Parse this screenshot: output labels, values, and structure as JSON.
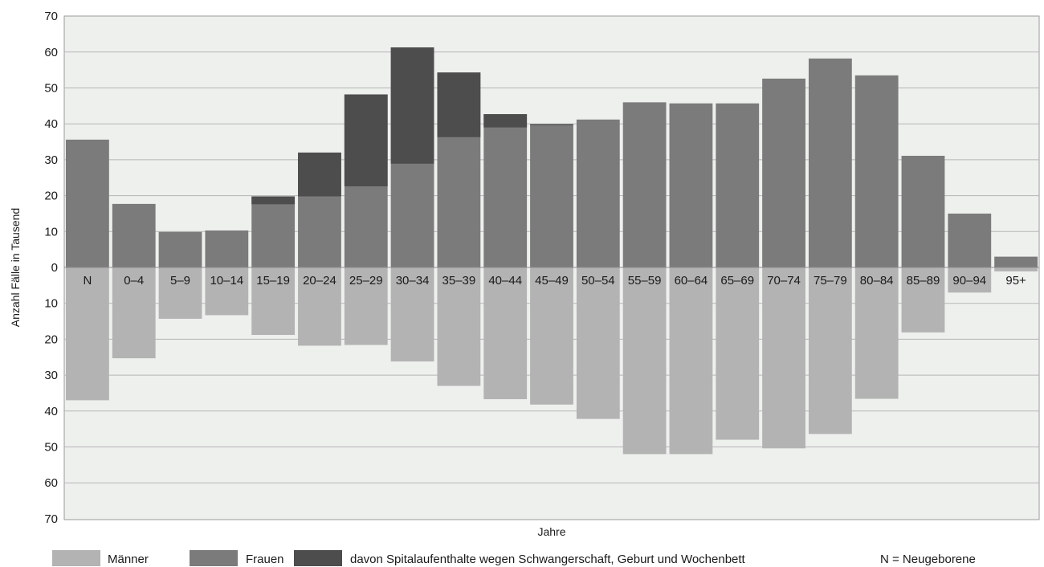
{
  "chart_data": {
    "type": "bar",
    "xlabel": "Jahre",
    "ylabel": "Anzahl Fälle in Tausend",
    "ylim": [
      -70,
      70
    ],
    "y_ticks": [
      "70",
      "60",
      "50",
      "40",
      "30",
      "20",
      "10",
      "0",
      "10",
      "20",
      "30",
      "40",
      "50",
      "60",
      "70"
    ],
    "grid": true,
    "legend_position": "bottom",
    "categories": [
      "N",
      "0–4",
      "5–9",
      "10–14",
      "15–19",
      "20–24",
      "25–29",
      "30–34",
      "35–39",
      "40–44",
      "45–49",
      "50–54",
      "55–59",
      "60–64",
      "65–69",
      "70–74",
      "75–79",
      "80–84",
      "85–89",
      "90–94",
      "95+"
    ],
    "series": [
      {
        "name": "Männer",
        "color": "#b3b3b3",
        "values": [
          37.0,
          25.3,
          14.3,
          13.3,
          18.8,
          21.8,
          21.6,
          26.2,
          33.0,
          36.7,
          38.2,
          42.2,
          52.0,
          52.0,
          48.0,
          50.4,
          46.4,
          36.6,
          18.1,
          7.0,
          1.1
        ]
      },
      {
        "name": "Frauen",
        "color": "#7b7b7b",
        "values": [
          35.6,
          17.7,
          9.9,
          10.3,
          19.8,
          32.0,
          48.2,
          61.3,
          54.3,
          42.7,
          39.9,
          41.2,
          46.0,
          45.7,
          45.7,
          52.6,
          58.2,
          53.5,
          31.1,
          15.0,
          3.0
        ]
      },
      {
        "name": "davon Spitalaufenthalte wegen Schwangerschaft, Geburt und Wochenbett",
        "color": "#4d4d4d",
        "values": [
          0,
          0,
          0,
          0,
          2.2,
          12.2,
          25.6,
          32.4,
          18.0,
          3.7,
          0.3,
          0,
          0,
          0,
          0,
          0,
          0,
          0,
          0,
          0,
          0
        ]
      }
    ],
    "note": "N = Neugeborene"
  }
}
